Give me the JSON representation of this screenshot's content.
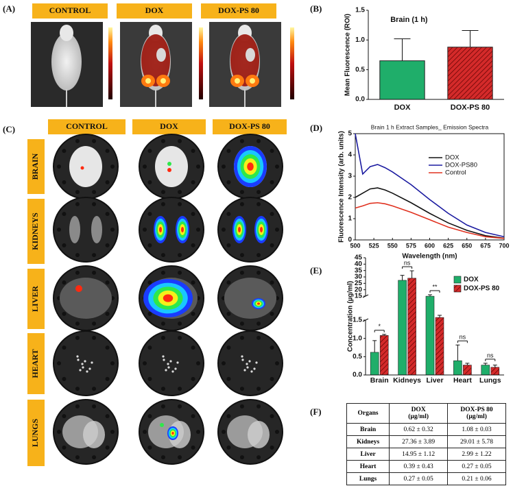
{
  "panel_labels": [
    "(A)",
    "(B)",
    "(C)",
    "(D)",
    "(E)",
    "(F)"
  ],
  "panel_a": {
    "headers": [
      "CONTROL",
      "DOX",
      "DOX-PS 80"
    ]
  },
  "panel_c": {
    "headers": [
      "CONTROL",
      "DOX",
      "DOX-PS 80"
    ],
    "rows": [
      "BRAIN",
      "KIDNEYS",
      "LIVER",
      "HEART",
      "LUNGS"
    ]
  },
  "chart_data": [
    {
      "type": "bar",
      "title": "Brain (1 h)",
      "ylabel": "Mean Fluorescence (ROI)",
      "categories": [
        "DOX",
        "DOX-PS 80"
      ],
      "values": [
        0.65,
        0.88
      ],
      "errors": [
        0.37,
        0.28
      ],
      "colors": [
        "#1fae6a",
        "#d42a2a"
      ],
      "hatch": [
        false,
        true
      ],
      "ylim": [
        0,
        1.5
      ],
      "yticks": [
        {
          "value": 0,
          "label": "0.0"
        },
        {
          "value": 0.5,
          "label": "0.5"
        },
        {
          "value": 1,
          "label": "1.0"
        },
        {
          "value": 1.5,
          "label": "1.5"
        }
      ]
    },
    {
      "type": "line",
      "title": "Brain 1 h Extract Samples_ Emission Spectra",
      "xlabel": "Wavelength (nm)",
      "ylabel": "Fluorescence Intensity (arb. units)",
      "x": [
        500,
        510,
        520,
        530,
        540,
        550,
        575,
        600,
        625,
        650,
        675,
        700
      ],
      "series": [
        {
          "name": "DOX",
          "color": "#111111",
          "values": [
            2.0,
            2.2,
            2.4,
            2.45,
            2.35,
            2.2,
            1.75,
            1.25,
            0.8,
            0.45,
            0.2,
            0.08
          ]
        },
        {
          "name": "DOX-PS80",
          "color": "#1a1aa0",
          "values": [
            5.0,
            3.1,
            3.45,
            3.55,
            3.4,
            3.2,
            2.6,
            1.9,
            1.25,
            0.7,
            0.35,
            0.15
          ]
        },
        {
          "name": "Control",
          "color": "#e0301e",
          "values": [
            1.5,
            1.6,
            1.72,
            1.75,
            1.7,
            1.6,
            1.3,
            0.95,
            0.6,
            0.35,
            0.15,
            0.07
          ]
        }
      ],
      "xlim": [
        500,
        700
      ],
      "xticks": [
        500,
        525,
        550,
        575,
        600,
        625,
        650,
        675,
        700
      ],
      "ylim": [
        0,
        5
      ],
      "yticks": [
        0,
        1,
        2,
        3,
        4,
        5
      ]
    },
    {
      "type": "grouped_bar",
      "ylabel": "Concentration (µg/ml)",
      "categories": [
        "Brain",
        "Kidneys",
        "Liver",
        "Heart",
        "Lungs"
      ],
      "series": [
        {
          "name": "DOX",
          "color": "#1fae6a",
          "hatch": false,
          "values": [
            0.62,
            27.36,
            14.95,
            0.39,
            0.27
          ],
          "errors": [
            0.32,
            3.89,
            1.12,
            0.43,
            0.05
          ]
        },
        {
          "name": "DOX-PS 80",
          "color": "#d42a2a",
          "hatch": true,
          "values": [
            1.08,
            29.01,
            2.99,
            0.27,
            0.21
          ],
          "errors": [
            0.03,
            5.78,
            1.22,
            0.05,
            0.06
          ]
        }
      ],
      "annotations": [
        "*",
        "ns",
        "**",
        "ns",
        "ns"
      ],
      "ylim": [
        0,
        45
      ],
      "axis_break": [
        1.5,
        15
      ],
      "yticks": [
        {
          "value": 0,
          "label": "0.0"
        },
        {
          "value": 0.5,
          "label": "0.5"
        },
        {
          "value": 1,
          "label": "1.0"
        },
        {
          "value": 1.5,
          "label": "1.5"
        },
        15,
        20,
        25,
        30,
        35,
        40,
        45
      ],
      "legend": "upper right"
    }
  ],
  "table": {
    "header": [
      [
        "Organs"
      ],
      [
        "DOX",
        "(µg/ml)"
      ],
      [
        "DOX-PS 80",
        "(µg/ml)"
      ]
    ],
    "rows": [
      [
        "Brain",
        "0.62 ± 0.32",
        "1.08 ± 0.03"
      ],
      [
        "Kidneys",
        "27.36 ± 3.89",
        "29.01 ± 5.78"
      ],
      [
        "Liver",
        "14.95 ± 1.12",
        "2.99 ± 1.22"
      ],
      [
        "Heart",
        "0.39 ± 0.43",
        "0.27 ± 0.05"
      ],
      [
        "Lungs",
        "0.27 ± 0.05",
        "0.21 ± 0.06"
      ]
    ]
  }
}
